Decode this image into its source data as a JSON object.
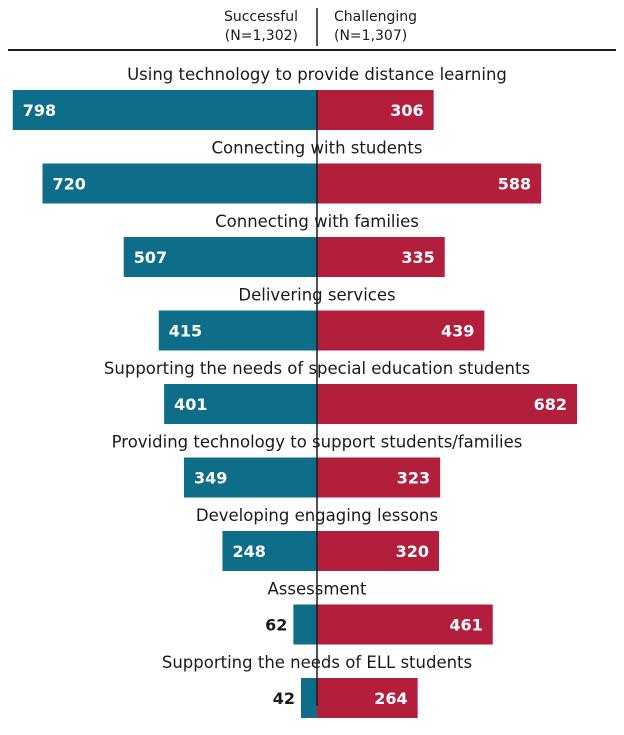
{
  "chart_data": {
    "type": "bar",
    "orientation": "diverging-horizontal",
    "title": "",
    "xlabel": "",
    "ylabel": "",
    "categories": [
      "Using technology to provide distance learning",
      "Connecting with students",
      "Connecting with families",
      "Delivering services",
      "Supporting the needs of special education students",
      "Providing technology to support students/families",
      "Developing engaging lessons",
      "Assessment",
      "Supporting the needs of ELL students"
    ],
    "series": [
      {
        "name": "Successful",
        "n_label": "(N=1,302)",
        "color": "#0e6e8a",
        "side": "left",
        "values": [
          798,
          720,
          507,
          415,
          401,
          349,
          248,
          62,
          42
        ]
      },
      {
        "name": "Challenging",
        "n_label": "(N=1,307)",
        "color": "#b31e3c",
        "side": "right",
        "values": [
          306,
          588,
          335,
          439,
          682,
          323,
          320,
          461,
          264
        ]
      }
    ],
    "xlim": [
      0,
      800
    ],
    "grid": false,
    "legend": "top-center"
  }
}
